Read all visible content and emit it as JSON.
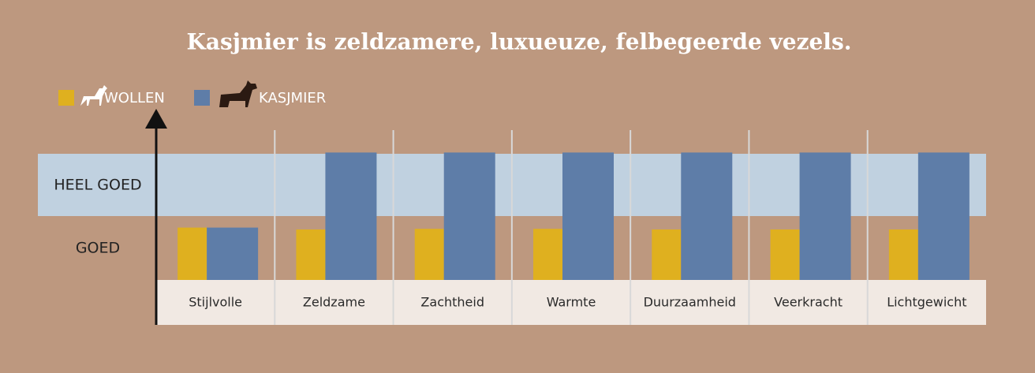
{
  "chart_data": {
    "type": "bar",
    "title": "Kasjmier is zeldzamere, luxueuze, felbegeerde vezels.",
    "categories": [
      "Stijlvolle",
      "Zeldzame",
      "Zachtheid",
      "Warmte",
      "Duurzaamheid",
      "Veerkracht",
      "Lichtgewicht"
    ],
    "series": [
      {
        "name": "WOLLEN",
        "color": "#DFB01F",
        "values": [
          0.83,
          0.8,
          0.81,
          0.81,
          0.8,
          0.8,
          0.8
        ]
      },
      {
        "name": "KASJMIER",
        "color": "#5E7DA8",
        "values": [
          0.83,
          2.02,
          2.02,
          2.02,
          2.02,
          2.02,
          2.02
        ]
      }
    ],
    "ylim": [
      0,
      2.7
    ],
    "yticks": [
      {
        "value": 0.5,
        "label": "GOED"
      },
      {
        "value": 1.5,
        "label": "HEEL GOED"
      }
    ],
    "legend": "top-left"
  }
}
